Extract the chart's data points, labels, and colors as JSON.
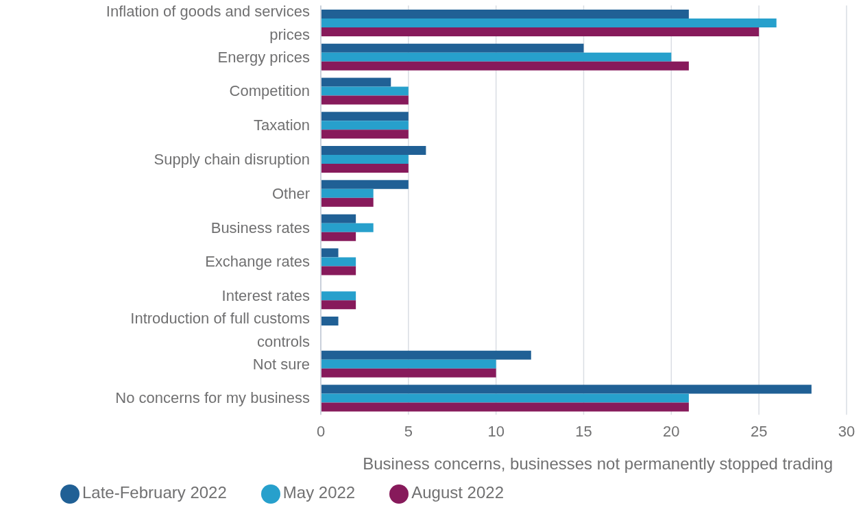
{
  "chart_data": {
    "type": "bar",
    "orientation": "horizontal",
    "xlabel": "Business concerns, businesses not permanently stopped trading",
    "categories": [
      "Inflation of goods and services prices",
      "Energy prices",
      "Competition",
      "Taxation",
      "Supply chain disruption",
      "Other",
      "Business rates",
      "Exchange rates",
      "Interest rates",
      "Introduction of full customs controls",
      "Not sure",
      "No concerns for my business"
    ],
    "series": [
      {
        "name": "Late-February 2022",
        "color": "#206095",
        "values": [
          21,
          15,
          4,
          5,
          6,
          5,
          2,
          1,
          null,
          1,
          12,
          28
        ]
      },
      {
        "name": "May 2022",
        "color": "#27a0cc",
        "values": [
          26,
          20,
          5,
          5,
          5,
          3,
          3,
          2,
          2,
          null,
          10,
          21
        ]
      },
      {
        "name": "August 2022",
        "color": "#871a5b",
        "values": [
          25,
          21,
          5,
          5,
          5,
          3,
          2,
          2,
          2,
          null,
          10,
          21
        ]
      }
    ],
    "xlim": [
      0,
      30
    ],
    "xticks": [
      0,
      5,
      10,
      15,
      20,
      25,
      30
    ],
    "grid": "x",
    "legend": "bottom"
  }
}
